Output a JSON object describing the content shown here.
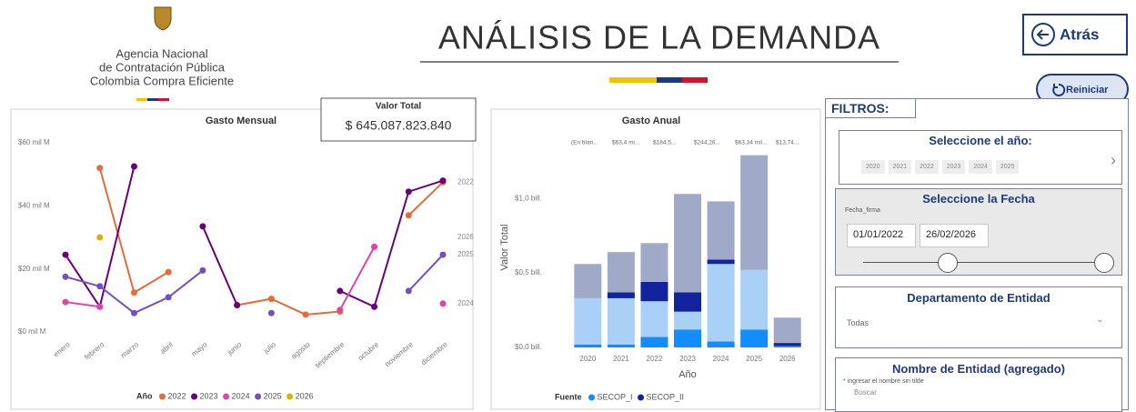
{
  "header": {
    "logo_lines": [
      "Agencia Nacional",
      "de Contratación Pública",
      "Colombia Compra Eficiente"
    ],
    "title": "ANÁLISIS DE LA DEMANDA",
    "back_button": "Atrás",
    "reset_button": "Reiniciar"
  },
  "kpi": {
    "label": "Valor Total",
    "value": "$ 645.087.823.840"
  },
  "chart_data": [
    {
      "type": "line",
      "title": "Gasto Mensual",
      "categories": [
        "enero",
        "febrero",
        "marzo",
        "abril",
        "mayo",
        "junio",
        "julio",
        "agosto",
        "septiembre",
        "octubre",
        "noviembre",
        "diciembre"
      ],
      "ylim": [
        0,
        60
      ],
      "yticks": [
        {
          "value": 0,
          "label": "$0 mil M"
        },
        {
          "value": 20,
          "label": "$20 mil M"
        },
        {
          "value": 40,
          "label": "$40 mil M"
        },
        {
          "value": 60,
          "label": "$60 mil M"
        }
      ],
      "grid": false,
      "legend_title": "Año",
      "legend_position": "bottom",
      "series": [
        {
          "name": "2022",
          "color": "#e66c37",
          "end_label": true,
          "values": [
            null,
            52,
            12.5,
            19,
            null,
            8.5,
            10.5,
            5.5,
            6.5,
            null,
            37,
            47.5
          ]
        },
        {
          "name": "2023",
          "color": "#6b007b",
          "end_label": false,
          "values": [
            24.5,
            8,
            52.5,
            null,
            33.5,
            8.5,
            null,
            null,
            13,
            8,
            44.5,
            48
          ]
        },
        {
          "name": "2024",
          "color": "#e044a7",
          "end_label": true,
          "values": [
            9.5,
            8,
            null,
            null,
            null,
            null,
            null,
            null,
            7,
            27,
            null,
            9
          ]
        },
        {
          "name": "2025",
          "color": "#744ec2",
          "end_label": true,
          "values": [
            17.5,
            14.5,
            6,
            11,
            19.5,
            null,
            6,
            null,
            null,
            null,
            13,
            24.5
          ]
        },
        {
          "name": "2026",
          "color": "#d9b300",
          "end_label": true,
          "values": [
            null,
            30,
            null,
            null,
            null,
            null,
            null,
            null,
            null,
            null,
            null,
            null
          ]
        }
      ]
    },
    {
      "type": "bar",
      "stacked": true,
      "title": "Gasto Anual",
      "x_label": "Año",
      "y_label": "Valor Total",
      "top_labels": [
        "(En blan...",
        "$63,4 mi...",
        "$184,5...",
        "$244,26...",
        "$63,34 mil...",
        "$13,74..."
      ],
      "categories": [
        "2020",
        "2021",
        "2022",
        "2023",
        "2024",
        "2025",
        "2026"
      ],
      "ylim": [
        0,
        1.3
      ],
      "yticks": [
        {
          "value": 0,
          "label": "$0,0 bill."
        },
        {
          "value": 0.5,
          "label": "$0,5 bill."
        },
        {
          "value": 1,
          "label": "$1,0 bill."
        }
      ],
      "grid": false,
      "legend_title": "Fuente",
      "legend_position": "bottom",
      "series": [
        {
          "name": "SECOP_I",
          "color": "#118dff",
          "values": [
            0.02,
            0.02,
            0.07,
            0.12,
            0.04,
            0.12,
            0.01
          ]
        },
        {
          "color": "#a9d1f7",
          "values": [
            0.31,
            0.31,
            0.24,
            0.12,
            0.52,
            0.4,
            0
          ]
        },
        {
          "name": "SECOP_II",
          "color": "#12239e",
          "values": [
            0,
            0.04,
            0.13,
            0.13,
            0.03,
            0,
            0.02
          ]
        },
        {
          "color": "#a0aac8",
          "values": [
            0.23,
            0.27,
            0.26,
            0.66,
            0.39,
            0.77,
            0.17
          ]
        }
      ]
    }
  ],
  "filters": {
    "title": "FILTROS:",
    "year": {
      "label": "Seleccione el año:",
      "options": [
        "2020",
        "2021",
        "2022",
        "2023",
        "2024",
        "2025"
      ]
    },
    "date": {
      "label": "Seleccione la Fecha",
      "field": "Fecha_firma",
      "start": "01/01/2022",
      "end": "26/02/2026"
    },
    "department": {
      "label": "Departamento de Entidad",
      "value": "Todas"
    },
    "entity": {
      "label": "Nombre de Entidad (agregado)",
      "hint": "* ingresar el nombre sin tilde",
      "placeholder": "Buscar"
    }
  }
}
